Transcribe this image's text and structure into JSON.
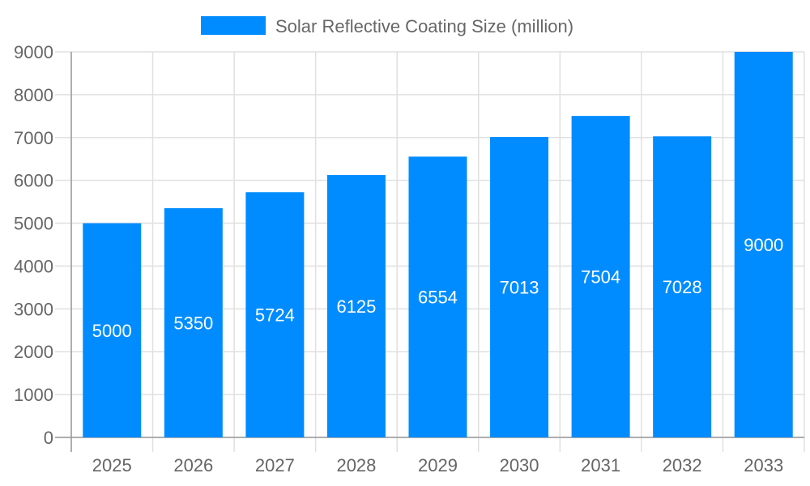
{
  "chart_data": {
    "type": "bar",
    "categories": [
      "2025",
      "2026",
      "2027",
      "2028",
      "2029",
      "2030",
      "2031",
      "2032",
      "2033"
    ],
    "series": [
      {
        "name": "Solar Reflective Coating Size (million)",
        "values": [
          5000,
          5350,
          5724,
          6125,
          6554,
          7013,
          7504,
          7028,
          9000
        ],
        "color": "#008cff"
      }
    ],
    "data_labels": [
      "5000",
      "5350",
      "5724",
      "6125",
      "6554",
      "7013",
      "7504",
      "7028",
      "9000"
    ],
    "y_ticks": [
      "0",
      "1000",
      "2000",
      "3000",
      "4000",
      "5000",
      "6000",
      "7000",
      "8000",
      "9000"
    ],
    "ylim": [
      0,
      9000
    ],
    "grid": true,
    "legend_position": "top"
  }
}
